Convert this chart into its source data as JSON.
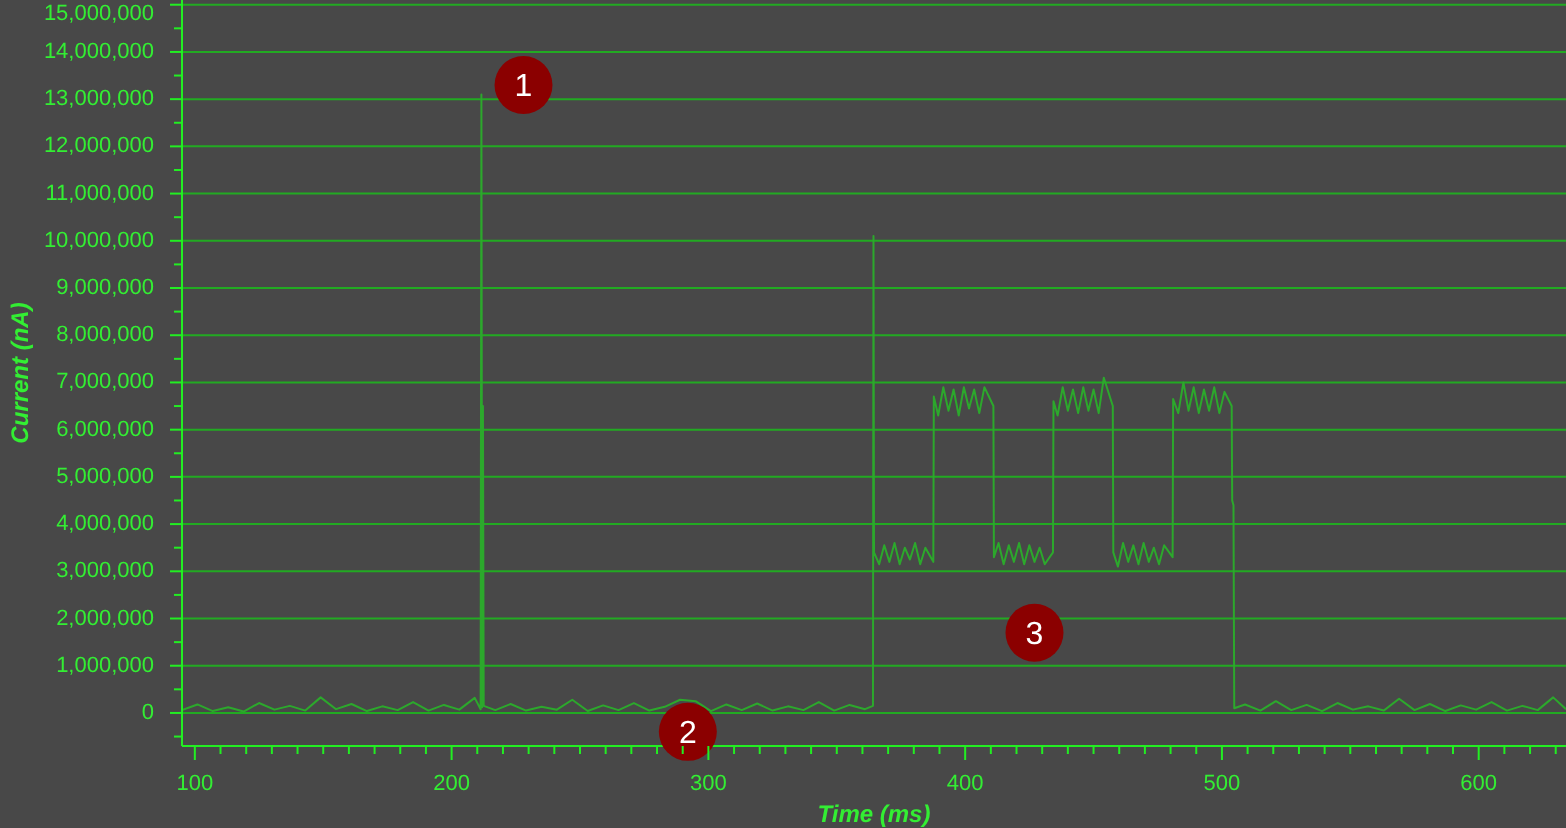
{
  "chart_data": {
    "type": "line",
    "xlabel": "Time (ms)",
    "ylabel": "Current (nA)",
    "x": [
      95,
      101,
      107,
      113,
      119,
      125,
      131,
      137,
      143,
      149,
      155,
      161,
      167,
      173,
      179,
      185,
      191,
      197,
      203,
      209,
      211.3,
      211.6,
      211.9,
      212.2,
      212.5,
      217,
      223,
      229,
      235,
      241,
      247,
      253,
      259,
      265,
      271,
      277,
      283,
      289,
      295,
      301,
      307,
      313,
      319,
      325,
      331,
      337,
      343,
      349,
      355,
      361,
      364.1,
      364.3,
      364.5,
      366.5,
      368.5,
      370.5,
      372.5,
      374.5,
      376.5,
      378.5,
      380.5,
      382.5,
      384.5,
      387.6,
      387.8,
      389.5,
      391.5,
      393.5,
      395.5,
      397.5,
      399.5,
      401.5,
      403.5,
      405.5,
      407.5,
      411.0,
      411.2,
      413,
      415,
      417,
      419,
      421,
      423,
      425,
      427,
      429,
      431,
      434.2,
      434.4,
      436,
      438,
      440,
      442,
      444,
      446,
      448,
      450,
      452,
      454,
      457.5,
      457.7,
      459.5,
      461.5,
      463.5,
      465.5,
      467.5,
      469.5,
      471.5,
      473.5,
      475.5,
      477.5,
      480.8,
      481.0,
      483,
      485,
      487,
      489,
      491,
      493,
      495,
      497,
      499,
      501,
      503.8,
      504.0,
      504.5,
      504.8,
      509,
      515,
      521,
      527,
      533,
      539,
      545,
      551,
      557,
      563,
      569,
      575,
      581,
      587,
      593,
      599,
      605,
      611,
      617,
      623,
      629,
      634
    ],
    "series": [
      {
        "color": "#2ca82c",
        "values": [
          60000,
          180000,
          40000,
          120000,
          30000,
          210000,
          70000,
          150000,
          50000,
          330000,
          80000,
          190000,
          40000,
          140000,
          60000,
          230000,
          50000,
          170000,
          70000,
          320000,
          80000,
          13100000,
          120000,
          6500000,
          150000,
          60000,
          190000,
          50000,
          130000,
          70000,
          280000,
          40000,
          160000,
          60000,
          210000,
          50000,
          130000,
          280000,
          250000,
          40000,
          180000,
          60000,
          200000,
          50000,
          140000,
          60000,
          230000,
          50000,
          170000,
          80000,
          150000,
          10100000,
          3400000,
          3150000,
          3550000,
          3200000,
          3600000,
          3150000,
          3500000,
          3250000,
          3600000,
          3150000,
          3500000,
          3200000,
          6700000,
          6300000,
          6900000,
          6400000,
          6850000,
          6300000,
          6900000,
          6450000,
          6850000,
          6350000,
          6900000,
          6500000,
          3300000,
          3600000,
          3150000,
          3550000,
          3200000,
          3600000,
          3150000,
          3550000,
          3200000,
          3500000,
          3150000,
          3400000,
          6600000,
          6300000,
          6900000,
          6400000,
          6850000,
          6350000,
          6900000,
          6400000,
          6850000,
          6350000,
          7100000,
          6500000,
          3400000,
          3100000,
          3600000,
          3200000,
          3550000,
          3150000,
          3600000,
          3200000,
          3500000,
          3150000,
          3550000,
          3300000,
          6650000,
          6350000,
          7000000,
          6400000,
          6900000,
          6350000,
          6850000,
          6400000,
          6900000,
          6350000,
          6800000,
          6500000,
          4500000,
          4400000,
          100000,
          180000,
          50000,
          250000,
          60000,
          170000,
          40000,
          210000,
          70000,
          140000,
          50000,
          300000,
          60000,
          190000,
          40000,
          160000,
          70000,
          230000,
          50000,
          150000,
          60000,
          330000,
          80000
        ]
      }
    ],
    "xlim": [
      95,
      634
    ],
    "ylim": [
      -700000,
      15100000
    ],
    "xticks": [
      100,
      {
        "value": 110,
        "label": null
      },
      {
        "value": 120,
        "label": null
      },
      {
        "value": 130,
        "label": null
      },
      {
        "value": 140,
        "label": null
      },
      {
        "value": 150,
        "label": null
      },
      {
        "value": 160,
        "label": null
      },
      {
        "value": 170,
        "label": null
      },
      {
        "value": 180,
        "label": null
      },
      {
        "value": 190,
        "label": null
      },
      200,
      {
        "value": 210,
        "label": null
      },
      {
        "value": 220,
        "label": null
      },
      {
        "value": 230,
        "label": null
      },
      {
        "value": 240,
        "label": null
      },
      {
        "value": 250,
        "label": null
      },
      {
        "value": 260,
        "label": null
      },
      {
        "value": 270,
        "label": null
      },
      {
        "value": 280,
        "label": null
      },
      {
        "value": 290,
        "label": null
      },
      300,
      {
        "value": 310,
        "label": null
      },
      {
        "value": 320,
        "label": null
      },
      {
        "value": 330,
        "label": null
      },
      {
        "value": 340,
        "label": null
      },
      {
        "value": 350,
        "label": null
      },
      {
        "value": 360,
        "label": null
      },
      {
        "value": 370,
        "label": null
      },
      {
        "value": 380,
        "label": null
      },
      {
        "value": 390,
        "label": null
      },
      400,
      {
        "value": 410,
        "label": null
      },
      {
        "value": 420,
        "label": null
      },
      {
        "value": 430,
        "label": null
      },
      {
        "value": 440,
        "label": null
      },
      {
        "value": 450,
        "label": null
      },
      {
        "value": 460,
        "label": null
      },
      {
        "value": 470,
        "label": null
      },
      {
        "value": 480,
        "label": null
      },
      {
        "value": 490,
        "label": null
      },
      500,
      {
        "value": 510,
        "label": null
      },
      {
        "value": 520,
        "label": null
      },
      {
        "value": 530,
        "label": null
      },
      {
        "value": 540,
        "label": null
      },
      {
        "value": 550,
        "label": null
      },
      {
        "value": 560,
        "label": null
      },
      {
        "value": 570,
        "label": null
      },
      {
        "value": 580,
        "label": null
      },
      {
        "value": 590,
        "label": null
      },
      600,
      {
        "value": 610,
        "label": null
      },
      {
        "value": 620,
        "label": null
      },
      {
        "value": 630,
        "label": null
      }
    ],
    "yticks": [
      {
        "value": -500000,
        "label": null
      },
      0,
      {
        "value": 500000,
        "label": null
      },
      {
        "value": 1000000,
        "label": "1,000,000"
      },
      {
        "value": 1500000,
        "label": null
      },
      {
        "value": 2000000,
        "label": "2,000,000"
      },
      {
        "value": 2500000,
        "label": null
      },
      {
        "value": 3000000,
        "label": "3,000,000"
      },
      {
        "value": 3500000,
        "label": null
      },
      {
        "value": 4000000,
        "label": "4,000,000"
      },
      {
        "value": 4500000,
        "label": null
      },
      {
        "value": 5000000,
        "label": "5,000,000"
      },
      {
        "value": 5500000,
        "label": null
      },
      {
        "value": 6000000,
        "label": "6,000,000"
      },
      {
        "value": 6500000,
        "label": null
      },
      {
        "value": 7000000,
        "label": "7,000,000"
      },
      {
        "value": 7500000,
        "label": null
      },
      {
        "value": 8000000,
        "label": "8,000,000"
      },
      {
        "value": 8500000,
        "label": null
      },
      {
        "value": 9000000,
        "label": "9,000,000"
      },
      {
        "value": 9500000,
        "label": null
      },
      {
        "value": 10000000,
        "label": "10,000,000"
      },
      {
        "value": 10500000,
        "label": null
      },
      {
        "value": 11000000,
        "label": "11,000,000"
      },
      {
        "value": 11500000,
        "label": null
      },
      {
        "value": 12000000,
        "label": "12,000,000"
      },
      {
        "value": 12500000,
        "label": null
      },
      {
        "value": 13000000,
        "label": "13,000,000"
      },
      {
        "value": 13500000,
        "label": null
      },
      {
        "value": 14000000,
        "label": "14,000,000"
      },
      {
        "value": 14500000,
        "label": null
      },
      {
        "value": 15000000,
        "label": "15,000,000"
      }
    ],
    "grid": "y",
    "annotations": [
      {
        "text": "1",
        "x": 228,
        "y": 13300000
      },
      {
        "text": "2",
        "x": 292,
        "y": -400000
      },
      {
        "text": "3",
        "x": 427,
        "y": 1700000
      }
    ]
  }
}
